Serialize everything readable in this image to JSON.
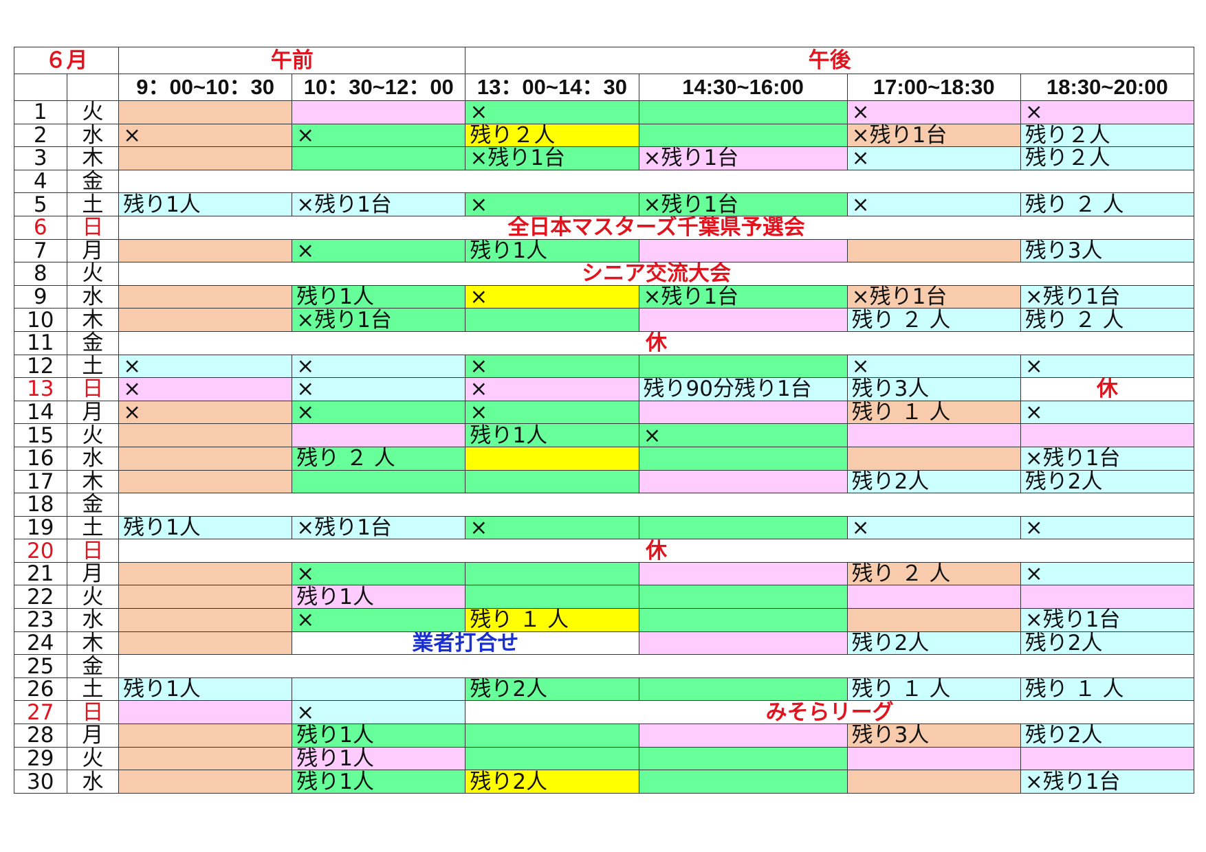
{
  "header": {
    "month": "６月",
    "am": "午前",
    "pm": "午後",
    "times": [
      "9：00~10：30",
      "10：30~12：00",
      "13：00~14：30",
      "14:30~16:00",
      "17:00~18:30",
      "18:30~20:00"
    ]
  },
  "colors": {
    "peach": "#f8cbad",
    "pink": "#ffccff",
    "green": "#66ff99",
    "yellow": "#ffff00",
    "cyan": "#ccffff",
    "white": "#ffffff",
    "red_text": "#e0141e",
    "blue_text": "#1a2fd0"
  },
  "rows": [
    {
      "day": "1",
      "dow": "火",
      "cells": [
        {
          "c": "peach",
          "t": ""
        },
        {
          "c": "pink",
          "t": ""
        },
        {
          "c": "green",
          "t": "×"
        },
        {
          "c": "green",
          "t": ""
        },
        {
          "c": "pink",
          "t": "×"
        },
        {
          "c": "pink",
          "t": "×"
        }
      ]
    },
    {
      "day": "2",
      "dow": "水",
      "cells": [
        {
          "c": "peach",
          "t": "×"
        },
        {
          "c": "green",
          "t": "×"
        },
        {
          "c": "yellow",
          "t": "残り２人"
        },
        {
          "c": "green",
          "t": ""
        },
        {
          "c": "peach",
          "t": "×残り1台"
        },
        {
          "c": "cyan",
          "t": "残り２人"
        }
      ]
    },
    {
      "day": "3",
      "dow": "木",
      "cells": [
        {
          "c": "peach",
          "t": ""
        },
        {
          "c": "green",
          "t": ""
        },
        {
          "c": "green",
          "t": "×残り1台"
        },
        {
          "c": "pink",
          "t": "×残り1台"
        },
        {
          "c": "cyan",
          "t": "×"
        },
        {
          "c": "cyan",
          "t": "残り２人"
        }
      ]
    },
    {
      "day": "4",
      "dow": "金",
      "event": {
        "text": "",
        "style": "red",
        "start": 2,
        "span": 6
      }
    },
    {
      "day": "5",
      "dow": "土",
      "cells": [
        {
          "c": "cyan",
          "t": "残り1人"
        },
        {
          "c": "cyan",
          "t": "×残り1台"
        },
        {
          "c": "green",
          "t": "×"
        },
        {
          "c": "green",
          "t": "×残り1台"
        },
        {
          "c": "cyan",
          "t": "×"
        },
        {
          "c": "cyan",
          "t": "残り ２ 人"
        }
      ]
    },
    {
      "day": "6",
      "dow": "日",
      "sun": true,
      "event": {
        "text": "全日本マスターズ千葉県予選会",
        "style": "red",
        "start": 2,
        "span": 6
      }
    },
    {
      "day": "7",
      "dow": "月",
      "cells": [
        {
          "c": "peach",
          "t": ""
        },
        {
          "c": "green",
          "t": "×"
        },
        {
          "c": "green",
          "t": "残り1人"
        },
        {
          "c": "pink",
          "t": ""
        },
        {
          "c": "peach",
          "t": ""
        },
        {
          "c": "cyan",
          "t": "残り3人"
        }
      ]
    },
    {
      "day": "8",
      "dow": "火",
      "event": {
        "text": "シニア交流大会",
        "style": "red",
        "start": 2,
        "span": 6
      }
    },
    {
      "day": "9",
      "dow": "水",
      "cells": [
        {
          "c": "peach",
          "t": ""
        },
        {
          "c": "green",
          "t": "残り1人"
        },
        {
          "c": "yellow",
          "t": "×"
        },
        {
          "c": "green",
          "t": "×残り1台"
        },
        {
          "c": "peach",
          "t": "×残り1台"
        },
        {
          "c": "cyan",
          "t": "×残り1台"
        }
      ]
    },
    {
      "day": "10",
      "dow": "木",
      "cells": [
        {
          "c": "peach",
          "t": ""
        },
        {
          "c": "green",
          "t": "×残り1台"
        },
        {
          "c": "green",
          "t": ""
        },
        {
          "c": "pink",
          "t": ""
        },
        {
          "c": "cyan",
          "t": "残り ２ 人"
        },
        {
          "c": "cyan",
          "t": "残り ２ 人"
        }
      ]
    },
    {
      "day": "11",
      "dow": "金",
      "event": {
        "text": "休",
        "style": "red",
        "start": 2,
        "span": 6
      }
    },
    {
      "day": "12",
      "dow": "土",
      "cells": [
        {
          "c": "cyan",
          "t": "×"
        },
        {
          "c": "cyan",
          "t": "×"
        },
        {
          "c": "green",
          "t": "×"
        },
        {
          "c": "green",
          "t": ""
        },
        {
          "c": "cyan",
          "t": "×"
        },
        {
          "c": "cyan",
          "t": "×"
        }
      ]
    },
    {
      "day": "13",
      "dow": "日",
      "sun": true,
      "cells": [
        {
          "c": "pink",
          "t": "×"
        },
        {
          "c": "cyan",
          "t": "×"
        },
        {
          "c": "pink",
          "t": "×"
        },
        {
          "c": "cyan",
          "t": "残り90分残り1台"
        },
        {
          "c": "cyan",
          "t": "残り3人"
        },
        {
          "c": "white",
          "t": "休",
          "ev": "red"
        }
      ]
    },
    {
      "day": "14",
      "dow": "月",
      "cells": [
        {
          "c": "peach",
          "t": "×"
        },
        {
          "c": "green",
          "t": "×"
        },
        {
          "c": "green",
          "t": "×"
        },
        {
          "c": "pink",
          "t": ""
        },
        {
          "c": "peach",
          "t": "残り １ 人"
        },
        {
          "c": "cyan",
          "t": "×"
        }
      ]
    },
    {
      "day": "15",
      "dow": "火",
      "cells": [
        {
          "c": "peach",
          "t": ""
        },
        {
          "c": "pink",
          "t": ""
        },
        {
          "c": "green",
          "t": "残り1人"
        },
        {
          "c": "green",
          "t": "×"
        },
        {
          "c": "pink",
          "t": ""
        },
        {
          "c": "pink",
          "t": ""
        }
      ]
    },
    {
      "day": "16",
      "dow": "水",
      "cells": [
        {
          "c": "peach",
          "t": ""
        },
        {
          "c": "green",
          "t": "残り ２ 人"
        },
        {
          "c": "yellow",
          "t": ""
        },
        {
          "c": "green",
          "t": ""
        },
        {
          "c": "peach",
          "t": ""
        },
        {
          "c": "cyan",
          "t": "×残り1台"
        }
      ]
    },
    {
      "day": "17",
      "dow": "木",
      "cells": [
        {
          "c": "peach",
          "t": ""
        },
        {
          "c": "green",
          "t": ""
        },
        {
          "c": "green",
          "t": ""
        },
        {
          "c": "pink",
          "t": ""
        },
        {
          "c": "cyan",
          "t": "残り2人"
        },
        {
          "c": "cyan",
          "t": "残り2人"
        }
      ]
    },
    {
      "day": "18",
      "dow": "金",
      "event": {
        "text": "",
        "style": "red",
        "start": 2,
        "span": 6
      }
    },
    {
      "day": "19",
      "dow": "土",
      "cells": [
        {
          "c": "cyan",
          "t": "残り1人"
        },
        {
          "c": "cyan",
          "t": "×残り1台"
        },
        {
          "c": "green",
          "t": "×"
        },
        {
          "c": "green",
          "t": ""
        },
        {
          "c": "cyan",
          "t": "×"
        },
        {
          "c": "cyan",
          "t": "×"
        }
      ]
    },
    {
      "day": "20",
      "dow": "日",
      "sun": true,
      "event": {
        "text": "休",
        "style": "red",
        "start": 2,
        "span": 6
      }
    },
    {
      "day": "21",
      "dow": "月",
      "cells": [
        {
          "c": "peach",
          "t": ""
        },
        {
          "c": "green",
          "t": "×"
        },
        {
          "c": "green",
          "t": ""
        },
        {
          "c": "pink",
          "t": ""
        },
        {
          "c": "peach",
          "t": "残り ２ 人"
        },
        {
          "c": "cyan",
          "t": "×"
        }
      ]
    },
    {
      "day": "22",
      "dow": "火",
      "cells": [
        {
          "c": "peach",
          "t": ""
        },
        {
          "c": "pink",
          "t": "残り1人"
        },
        {
          "c": "green",
          "t": ""
        },
        {
          "c": "green",
          "t": ""
        },
        {
          "c": "pink",
          "t": ""
        },
        {
          "c": "pink",
          "t": ""
        }
      ]
    },
    {
      "day": "23",
      "dow": "水",
      "cells": [
        {
          "c": "peach",
          "t": ""
        },
        {
          "c": "green",
          "t": "×"
        },
        {
          "c": "yellow",
          "t": "残り １ 人"
        },
        {
          "c": "green",
          "t": ""
        },
        {
          "c": "peach",
          "t": ""
        },
        {
          "c": "cyan",
          "t": "×残り1台"
        }
      ]
    },
    {
      "day": "24",
      "dow": "木",
      "cells": [
        {
          "c": "peach",
          "t": ""
        },
        {
          "c": "white",
          "t": "業者打合せ",
          "ev": "blue",
          "span": 2
        },
        {
          "c": "pink",
          "t": ""
        },
        {
          "c": "cyan",
          "t": "残り2人"
        },
        {
          "c": "cyan",
          "t": "残り2人"
        }
      ]
    },
    {
      "day": "25",
      "dow": "金",
      "event": {
        "text": "",
        "style": "red",
        "start": 2,
        "span": 6
      }
    },
    {
      "day": "26",
      "dow": "土",
      "cells": [
        {
          "c": "cyan",
          "t": "残り1人"
        },
        {
          "c": "cyan",
          "t": ""
        },
        {
          "c": "green",
          "t": "残り2人"
        },
        {
          "c": "green",
          "t": ""
        },
        {
          "c": "cyan",
          "t": "残り １ 人"
        },
        {
          "c": "cyan",
          "t": "残り １ 人"
        }
      ]
    },
    {
      "day": "27",
      "dow": "日",
      "sun": true,
      "cells": [
        {
          "c": "pink",
          "t": ""
        },
        {
          "c": "cyan",
          "t": "×"
        },
        {
          "c": "white",
          "t": "みそらリーグ",
          "ev": "red",
          "span": 4
        }
      ]
    },
    {
      "day": "28",
      "dow": "月",
      "cells": [
        {
          "c": "peach",
          "t": ""
        },
        {
          "c": "green",
          "t": "残り1人"
        },
        {
          "c": "green",
          "t": ""
        },
        {
          "c": "pink",
          "t": ""
        },
        {
          "c": "peach",
          "t": "残り3人"
        },
        {
          "c": "cyan",
          "t": "残り2人"
        }
      ]
    },
    {
      "day": "29",
      "dow": "火",
      "cells": [
        {
          "c": "peach",
          "t": ""
        },
        {
          "c": "pink",
          "t": "残り1人"
        },
        {
          "c": "green",
          "t": ""
        },
        {
          "c": "green",
          "t": ""
        },
        {
          "c": "pink",
          "t": ""
        },
        {
          "c": "pink",
          "t": ""
        }
      ]
    },
    {
      "day": "30",
      "dow": "水",
      "cells": [
        {
          "c": "peach",
          "t": ""
        },
        {
          "c": "green",
          "t": "残り1人"
        },
        {
          "c": "yellow",
          "t": "残り2人"
        },
        {
          "c": "green",
          "t": ""
        },
        {
          "c": "peach",
          "t": ""
        },
        {
          "c": "cyan",
          "t": "×残り1台"
        }
      ]
    }
  ]
}
